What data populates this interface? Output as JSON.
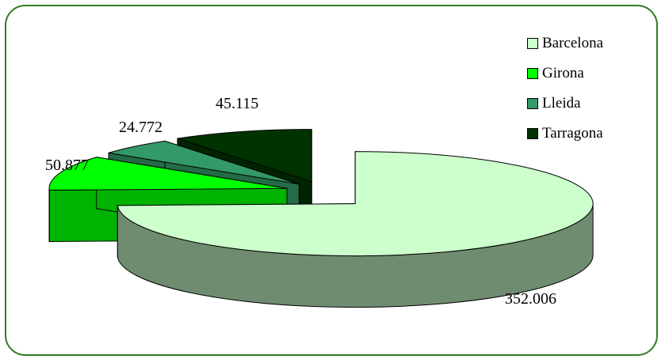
{
  "chart_data": {
    "type": "pie",
    "categories": [
      "Barcelona",
      "Girona",
      "Lleida",
      "Tarragona"
    ],
    "values": [
      352006,
      50877,
      24772,
      45115
    ],
    "value_labels": [
      "352.006",
      "50.877",
      "24.772",
      "45.115"
    ],
    "colors": [
      "#ccffcc",
      "#00ff00",
      "#339966",
      "#003300"
    ],
    "title": "",
    "legend_position": "top-right",
    "style": "3d-exploded"
  }
}
